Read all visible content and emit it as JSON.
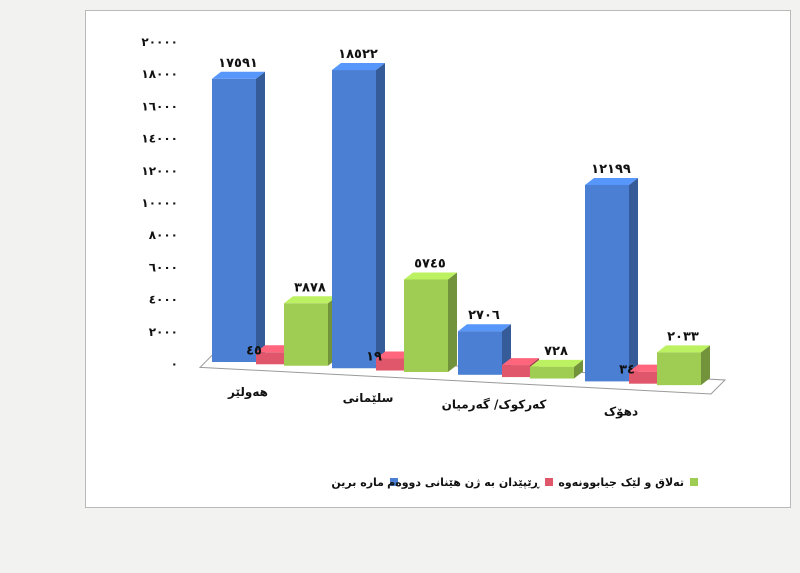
{
  "chart_data": {
    "type": "bar",
    "categories": [
      "هەولێر",
      "سلێمانی",
      "کەرکوک/گەرمیان",
      "دهۆک"
    ],
    "category_labels": [
      "هەولێر",
      "سلێمانی",
      "کەرکوک/ گەرمیان",
      "دهۆک"
    ],
    "series": [
      {
        "name": "مارە برین",
        "values": [
          17591,
          18522,
          2706,
          12199
        ],
        "labels": [
          "١٧٥٩١",
          "١٨٥٢٢",
          "٢٧٠٦",
          "١٢١٩٩"
        ],
        "color": "#4a7fd4"
      },
      {
        "name": "ڕێپێدان بە ژن هێنانی دووەم",
        "values": [
          45,
          19,
          0,
          34
        ],
        "labels": [
          "٤٥",
          "١٩",
          "",
          "٣٤"
        ],
        "color": "#e0566a"
      },
      {
        "name": "تەلاق و لێک جیابوونەوە",
        "values": [
          3878,
          5745,
          728,
          2033
        ],
        "labels": [
          "٣٨٧٨",
          "٥٧٤٥",
          "٧٢٨",
          "٢٠٣٣"
        ],
        "color": "#9fcc52"
      }
    ],
    "ylim": [
      0,
      20000
    ],
    "yticks": [
      0,
      2000,
      4000,
      6000,
      8000,
      10000,
      12000,
      14000,
      16000,
      18000,
      20000
    ],
    "ytick_labels": [
      "٠",
      "٢٠٠٠",
      "٤٠٠٠",
      "٦٠٠٠",
      "٨٠٠٠",
      "١٠٠٠٠",
      "١٢٠٠٠",
      "١٤٠٠٠",
      "١٦٠٠٠",
      "١٨٠٠٠",
      "٢٠٠٠٠"
    ],
    "legend_position": "bottom",
    "grid": false,
    "style": "3d-bar"
  }
}
